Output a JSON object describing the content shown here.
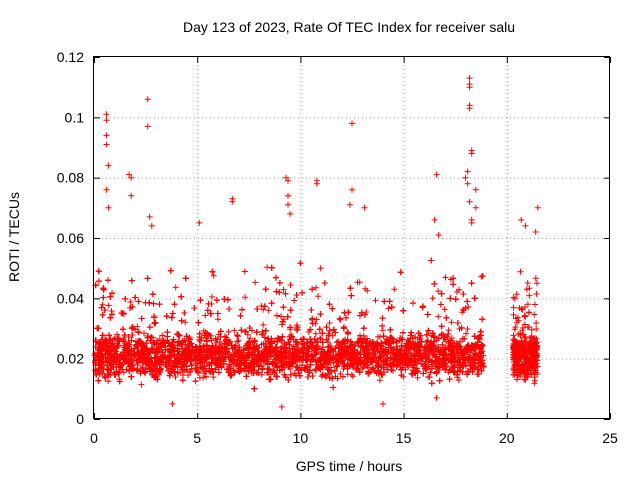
{
  "chart_data": {
    "type": "scatter",
    "title": "Day 123 of 2023, Rate Of TEC Index for receiver salu",
    "xlabel": "GPS time / hours",
    "ylabel": "ROTI / TECUs",
    "xlim": [
      0,
      25
    ],
    "ylim": [
      0,
      0.12
    ],
    "xticks": [
      0,
      5,
      10,
      15,
      20,
      25
    ],
    "yticks": [
      0,
      0.02,
      0.04,
      0.06,
      0.08,
      0.1,
      0.12
    ],
    "xtick_labels": [
      "0",
      "5",
      "10",
      "15",
      "20",
      "25"
    ],
    "ytick_labels": [
      "0",
      "0.02",
      "0.04",
      "0.06",
      "0.08",
      "0.1",
      "0.12"
    ],
    "grid": true,
    "marker": "+",
    "color": "#ff0000",
    "legend": "none",
    "coverage": [
      [
        0,
        18.9
      ],
      [
        20.3,
        21.5
      ]
    ],
    "typical_range": [
      0.01,
      0.03
    ],
    "baseline": 0.021,
    "notable_points": [
      {
        "x": 0.6,
        "y": 0.101
      },
      {
        "x": 0.6,
        "y": 0.099
      },
      {
        "x": 0.6,
        "y": 0.094
      },
      {
        "x": 0.6,
        "y": 0.091
      },
      {
        "x": 0.7,
        "y": 0.084
      },
      {
        "x": 0.6,
        "y": 0.076
      },
      {
        "x": 0.7,
        "y": 0.07
      },
      {
        "x": 1.7,
        "y": 0.081
      },
      {
        "x": 1.8,
        "y": 0.08
      },
      {
        "x": 1.8,
        "y": 0.074
      },
      {
        "x": 2.6,
        "y": 0.106
      },
      {
        "x": 2.6,
        "y": 0.097
      },
      {
        "x": 2.7,
        "y": 0.067
      },
      {
        "x": 2.8,
        "y": 0.064
      },
      {
        "x": 5.1,
        "y": 0.065
      },
      {
        "x": 6.7,
        "y": 0.073
      },
      {
        "x": 6.7,
        "y": 0.072
      },
      {
        "x": 9.3,
        "y": 0.08
      },
      {
        "x": 9.4,
        "y": 0.079
      },
      {
        "x": 9.4,
        "y": 0.074
      },
      {
        "x": 9.4,
        "y": 0.071
      },
      {
        "x": 9.5,
        "y": 0.068
      },
      {
        "x": 10.8,
        "y": 0.079
      },
      {
        "x": 10.8,
        "y": 0.078
      },
      {
        "x": 12.5,
        "y": 0.098
      },
      {
        "x": 12.5,
        "y": 0.076
      },
      {
        "x": 12.4,
        "y": 0.071
      },
      {
        "x": 13.1,
        "y": 0.07
      },
      {
        "x": 16.5,
        "y": 0.066
      },
      {
        "x": 16.7,
        "y": 0.061
      },
      {
        "x": 16.6,
        "y": 0.081
      },
      {
        "x": 18.2,
        "y": 0.113
      },
      {
        "x": 18.2,
        "y": 0.111
      },
      {
        "x": 18.2,
        "y": 0.11
      },
      {
        "x": 18.2,
        "y": 0.104
      },
      {
        "x": 18.2,
        "y": 0.103
      },
      {
        "x": 18.3,
        "y": 0.089
      },
      {
        "x": 18.3,
        "y": 0.088
      },
      {
        "x": 18.1,
        "y": 0.082
      },
      {
        "x": 18.0,
        "y": 0.08
      },
      {
        "x": 18.1,
        "y": 0.078
      },
      {
        "x": 18.5,
        "y": 0.076
      },
      {
        "x": 18.2,
        "y": 0.072
      },
      {
        "x": 18.5,
        "y": 0.07
      },
      {
        "x": 18.3,
        "y": 0.066
      },
      {
        "x": 18.3,
        "y": 0.065
      },
      {
        "x": 20.7,
        "y": 0.066
      },
      {
        "x": 20.9,
        "y": 0.064
      },
      {
        "x": 21.5,
        "y": 0.07
      },
      {
        "x": 21.4,
        "y": 0.062
      },
      {
        "x": 9.1,
        "y": 0.004
      },
      {
        "x": 3.8,
        "y": 0.005
      },
      {
        "x": 16.6,
        "y": 0.007
      },
      {
        "x": 14.0,
        "y": 0.005
      }
    ]
  }
}
